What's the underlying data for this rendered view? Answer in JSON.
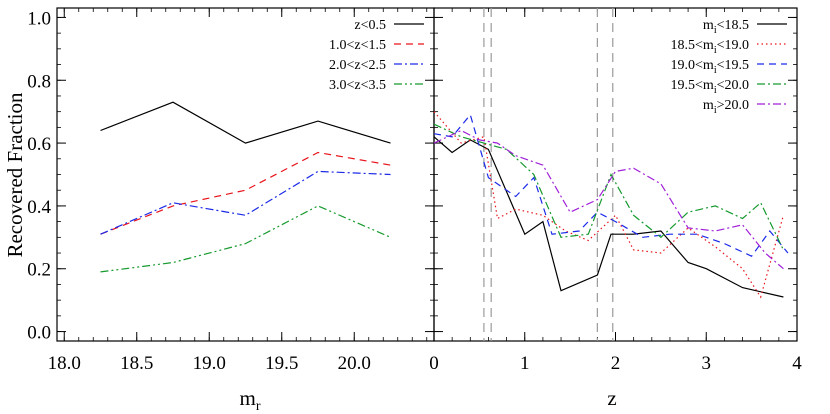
{
  "chart_data": [
    {
      "type": "line",
      "xlabel": "m",
      "xlabel_sub": "r",
      "ylabel": "Recovered Fraction",
      "xlim": [
        17.95,
        20.55
      ],
      "ylim": [
        -0.03,
        1.03
      ],
      "x_ticks": [
        "18.0",
        "18.5",
        "19.0",
        "19.5",
        "20.0"
      ],
      "x_tick_values": [
        18.0,
        18.5,
        19.0,
        19.5,
        20.0
      ],
      "y_ticks": [
        "0.0",
        "0.2",
        "0.4",
        "0.6",
        "0.8",
        "1.0"
      ],
      "y_tick_values": [
        0.0,
        0.2,
        0.4,
        0.6,
        0.8,
        1.0
      ],
      "legend_position": "top-right",
      "series": [
        {
          "name": "z<0.5",
          "color": "#000000",
          "dash": "solid",
          "x": [
            18.25,
            18.75,
            19.25,
            19.75,
            20.25
          ],
          "y": [
            0.64,
            0.73,
            0.6,
            0.67,
            0.6
          ]
        },
        {
          "name": "1.0<z<1.5",
          "color": "#e8141c",
          "dash": "dashed",
          "x": [
            18.25,
            18.75,
            19.25,
            19.75,
            20.25
          ],
          "y": [
            0.31,
            0.4,
            0.45,
            0.57,
            0.53
          ]
        },
        {
          "name": "2.0<z<2.5",
          "color": "#1c2be8",
          "dash": "dash-dot",
          "x": [
            18.25,
            18.75,
            19.25,
            19.75,
            20.25
          ],
          "y": [
            0.31,
            0.41,
            0.37,
            0.51,
            0.5
          ]
        },
        {
          "name": "3.0<z<3.5",
          "color": "#169a2e",
          "dash": "dash-dot-dot",
          "x": [
            18.25,
            18.75,
            19.25,
            19.75,
            20.25
          ],
          "y": [
            0.19,
            0.22,
            0.28,
            0.4,
            0.3
          ]
        }
      ]
    },
    {
      "type": "line",
      "xlabel": "z",
      "xlim": [
        0.0,
        4.0
      ],
      "ylim": [
        -0.03,
        1.03
      ],
      "x_ticks": [
        "0",
        "1",
        "2",
        "3",
        "4"
      ],
      "x_tick_values": [
        0,
        1,
        2,
        3,
        4
      ],
      "vertical_reference_lines_x": [
        0.55,
        0.63,
        1.8,
        1.97
      ],
      "legend_position": "top-right",
      "series": [
        {
          "name": "m_i<18.5",
          "label_main": "m",
          "label_sub": "i",
          "label_rest": "<18.5",
          "color": "#000000",
          "dash": "solid",
          "x": [
            0.0,
            0.2,
            0.4,
            0.6,
            1.0,
            1.2,
            1.4,
            1.8,
            1.95,
            2.2,
            2.5,
            2.8,
            3.0,
            3.4,
            3.85
          ],
          "y": [
            0.62,
            0.57,
            0.61,
            0.58,
            0.31,
            0.35,
            0.13,
            0.18,
            0.31,
            0.31,
            0.32,
            0.22,
            0.2,
            0.14,
            0.11
          ]
        },
        {
          "name": "18.5<m_i<19.0",
          "label_main": "18.5<m",
          "label_sub": "i",
          "label_rest": "<19.0",
          "color": "#e8141c",
          "dash": "dotted",
          "x": [
            0.0,
            0.3,
            0.55,
            0.7,
            0.9,
            1.2,
            1.45,
            1.7,
            2.0,
            2.2,
            2.5,
            2.8,
            3.1,
            3.4,
            3.6,
            3.85
          ],
          "y": [
            0.7,
            0.6,
            0.62,
            0.36,
            0.39,
            0.37,
            0.32,
            0.29,
            0.37,
            0.26,
            0.25,
            0.33,
            0.27,
            0.2,
            0.11,
            0.37
          ]
        },
        {
          "name": "19.0<m_i<19.5",
          "label_main": "19.0<m",
          "label_sub": "i",
          "label_rest": "<19.5",
          "color": "#1c2be8",
          "dash": "dashed",
          "x": [
            0.0,
            0.2,
            0.4,
            0.6,
            0.9,
            1.1,
            1.3,
            1.6,
            1.8,
            2.0,
            2.3,
            2.6,
            2.9,
            3.2,
            3.5,
            3.7,
            3.9
          ],
          "y": [
            0.63,
            0.62,
            0.69,
            0.49,
            0.43,
            0.49,
            0.31,
            0.32,
            0.38,
            0.35,
            0.3,
            0.31,
            0.31,
            0.28,
            0.24,
            0.32,
            0.25
          ]
        },
        {
          "name": "19.5<m_i<20.0",
          "label_main": "19.5<m",
          "label_sub": "i",
          "label_rest": "<20.0",
          "color": "#169a2e",
          "dash": "dash-dot",
          "x": [
            0.0,
            0.3,
            0.55,
            0.8,
            1.1,
            1.4,
            1.7,
            1.95,
            2.2,
            2.5,
            2.8,
            3.1,
            3.4,
            3.6,
            3.85
          ],
          "y": [
            0.66,
            0.62,
            0.6,
            0.58,
            0.5,
            0.3,
            0.31,
            0.5,
            0.37,
            0.3,
            0.38,
            0.4,
            0.36,
            0.41,
            0.26
          ]
        },
        {
          "name": "m_i>20.0",
          "label_main": "m",
          "label_sub": "i",
          "label_rest": ">20.0",
          "color": "#a020d8",
          "dash": "dash-dot",
          "x": [
            0.0,
            0.3,
            0.5,
            0.7,
            0.9,
            1.2,
            1.5,
            1.8,
            2.0,
            2.2,
            2.5,
            2.8,
            3.1,
            3.4,
            3.65,
            3.85
          ],
          "y": [
            0.6,
            0.64,
            0.61,
            0.6,
            0.56,
            0.53,
            0.38,
            0.42,
            0.51,
            0.52,
            0.47,
            0.33,
            0.32,
            0.34,
            0.25,
            0.2
          ]
        }
      ]
    }
  ]
}
